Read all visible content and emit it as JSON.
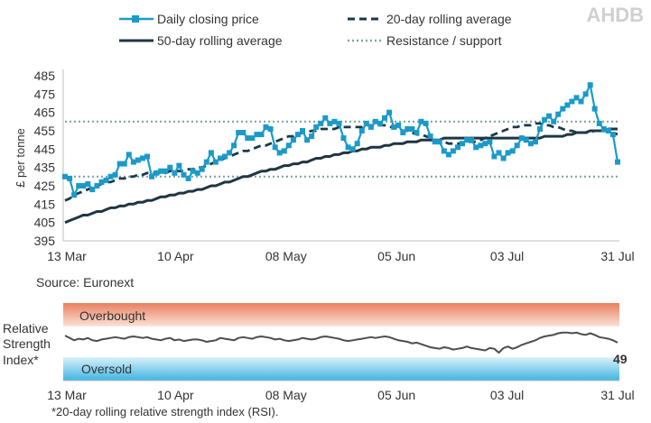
{
  "logo": {
    "text": "AHDB"
  },
  "colors": {
    "daily": "#1b9ac9",
    "avg20": "#1a3a4a",
    "avg50": "#1f3642",
    "resistance": "#7fa79f",
    "rsi_line": "#4d4d4d",
    "overbought_top": "#e9805f",
    "overbought_bottom": "#fbe1d6",
    "oversold_top": "#d8f0fa",
    "oversold_bottom": "#3fb5e3",
    "axis": "#bfbfbf"
  },
  "chart_data": [
    {
      "type": "line",
      "title": "",
      "ylabel": "£ per tonne",
      "xlabel": "",
      "ylim": [
        395,
        485
      ],
      "yticks": [
        395,
        405,
        415,
        425,
        435,
        445,
        455,
        465,
        475,
        485
      ],
      "x_range": [
        "13 Mar",
        "31 Jul"
      ],
      "xticks": [
        "13 Mar",
        "10 Apr",
        "08 May",
        "05 Jun",
        "03 Jul",
        "31 Jul"
      ],
      "legend_position": "top",
      "source": "Source: Euronext",
      "series": [
        {
          "name": "Daily closing price",
          "style": "line-with-square-markers",
          "values": [
            430,
            429,
            420,
            425,
            425,
            426,
            423,
            425,
            427,
            428,
            430,
            431,
            437,
            437,
            442,
            438,
            439,
            440,
            441,
            430,
            432,
            433,
            433,
            435,
            432,
            436,
            431,
            429,
            433,
            432,
            434,
            438,
            443,
            438,
            440,
            441,
            443,
            447,
            454,
            454,
            451,
            451,
            453,
            453,
            457,
            456,
            446,
            443,
            444,
            447,
            450,
            453,
            455,
            450,
            452,
            457,
            459,
            462,
            459,
            460,
            459,
            451,
            446,
            445,
            448,
            455,
            459,
            457,
            460,
            459,
            462,
            465,
            457,
            458,
            454,
            456,
            456,
            454,
            460,
            459,
            452,
            449,
            449,
            444,
            442,
            444,
            446,
            448,
            450,
            450,
            446,
            447,
            448,
            449,
            441,
            443,
            440,
            443,
            444,
            447,
            451,
            450,
            448,
            449,
            456,
            461,
            463,
            460,
            464,
            467,
            469,
            471,
            473,
            471,
            475,
            480,
            467,
            459,
            456,
            455,
            453,
            438
          ]
        },
        {
          "name": "20-day rolling average",
          "style": "dashed",
          "values": [
            417,
            418,
            420,
            421,
            422,
            423,
            424,
            425,
            426,
            427,
            427,
            428,
            429,
            429,
            430,
            430,
            431,
            431,
            432,
            432,
            432,
            432,
            432,
            433,
            433,
            433,
            433,
            434,
            434,
            435,
            435,
            436,
            437,
            438,
            439,
            440,
            441,
            442,
            443,
            444,
            444,
            445,
            446,
            447,
            447,
            448,
            449,
            450,
            451,
            452,
            452,
            453,
            454,
            454,
            455,
            455,
            456,
            456,
            456,
            456,
            457,
            457,
            457,
            457,
            457,
            457,
            458,
            458,
            458,
            458,
            458,
            457,
            457,
            456,
            455,
            455,
            454,
            453,
            453,
            452,
            451,
            450,
            449,
            449,
            448,
            448,
            448,
            448,
            449,
            449,
            449,
            450,
            451,
            452,
            453,
            454,
            455,
            456,
            457,
            457,
            458,
            458,
            458,
            459,
            459,
            458,
            458,
            457,
            457,
            456,
            455,
            455,
            454,
            454,
            454,
            454,
            455,
            455,
            455,
            455,
            454,
            453
          ]
        },
        {
          "name": "50-day rolling average",
          "style": "solid-thick",
          "values": [
            405,
            406,
            407,
            408,
            409,
            409,
            410,
            411,
            411,
            412,
            413,
            413,
            414,
            414,
            415,
            415,
            416,
            416,
            417,
            417,
            418,
            419,
            419,
            420,
            420,
            421,
            421,
            422,
            422,
            423,
            423,
            424,
            425,
            425,
            426,
            427,
            427,
            428,
            429,
            430,
            430,
            431,
            432,
            433,
            433,
            434,
            434,
            435,
            436,
            436,
            437,
            437,
            438,
            438,
            439,
            440,
            440,
            441,
            441,
            442,
            442,
            443,
            443,
            444,
            444,
            445,
            445,
            446,
            446,
            446,
            447,
            447,
            448,
            448,
            448,
            449,
            449,
            449,
            450,
            450,
            450,
            450,
            450,
            451,
            451,
            451,
            451,
            451,
            451,
            451,
            451,
            451,
            451,
            451,
            451,
            451,
            451,
            451,
            451,
            451,
            451,
            451,
            451,
            451,
            451,
            452,
            452,
            452,
            452,
            452,
            453,
            453,
            454,
            454,
            454,
            455,
            455,
            455,
            455,
            456,
            456,
            456
          ]
        },
        {
          "name": "Resistance / support",
          "style": "dotted",
          "resistance": 460,
          "support": 430
        }
      ]
    },
    {
      "type": "line",
      "title": "",
      "ylabel": "Relative Strength Index*",
      "ylabel_lines": [
        "Relative",
        "Strength",
        "Index*"
      ],
      "ylim": [
        0,
        100
      ],
      "zones": [
        {
          "label": "Overbought",
          "from": 70,
          "to": 100
        },
        {
          "label": "Oversold",
          "from": 0,
          "to": 30
        }
      ],
      "xticks": [
        "13 Mar",
        "10 Apr",
        "08 May",
        "05 Jun",
        "03 Jul",
        "31 Jul"
      ],
      "last_value_label": "49",
      "footnote": "*20-day rolling relative strength index (RSI).",
      "series": [
        {
          "name": "RSI",
          "values": [
            58,
            55,
            52,
            54,
            53,
            55,
            52,
            51,
            53,
            54,
            55,
            56,
            55,
            54,
            56,
            57,
            56,
            55,
            56,
            54,
            53,
            52,
            54,
            55,
            52,
            53,
            51,
            52,
            53,
            53,
            52,
            50,
            51,
            52,
            55,
            54,
            53,
            52,
            55,
            56,
            55,
            54,
            56,
            57,
            56,
            55,
            53,
            54,
            52,
            51,
            52,
            53,
            55,
            54,
            53,
            54,
            56,
            57,
            56,
            55,
            54,
            52,
            51,
            52,
            53,
            54,
            55,
            56,
            55,
            56,
            57,
            56,
            54,
            52,
            51,
            50,
            48,
            49,
            47,
            45,
            43,
            42,
            41,
            43,
            42,
            40,
            41,
            42,
            44,
            42,
            41,
            40,
            39,
            42,
            41,
            36,
            42,
            44,
            41,
            43,
            46,
            48,
            50,
            52,
            55,
            57,
            58,
            59,
            61,
            62,
            62,
            61,
            62,
            60,
            59,
            61,
            59,
            56,
            55,
            54,
            52,
            49
          ]
        }
      ]
    }
  ]
}
